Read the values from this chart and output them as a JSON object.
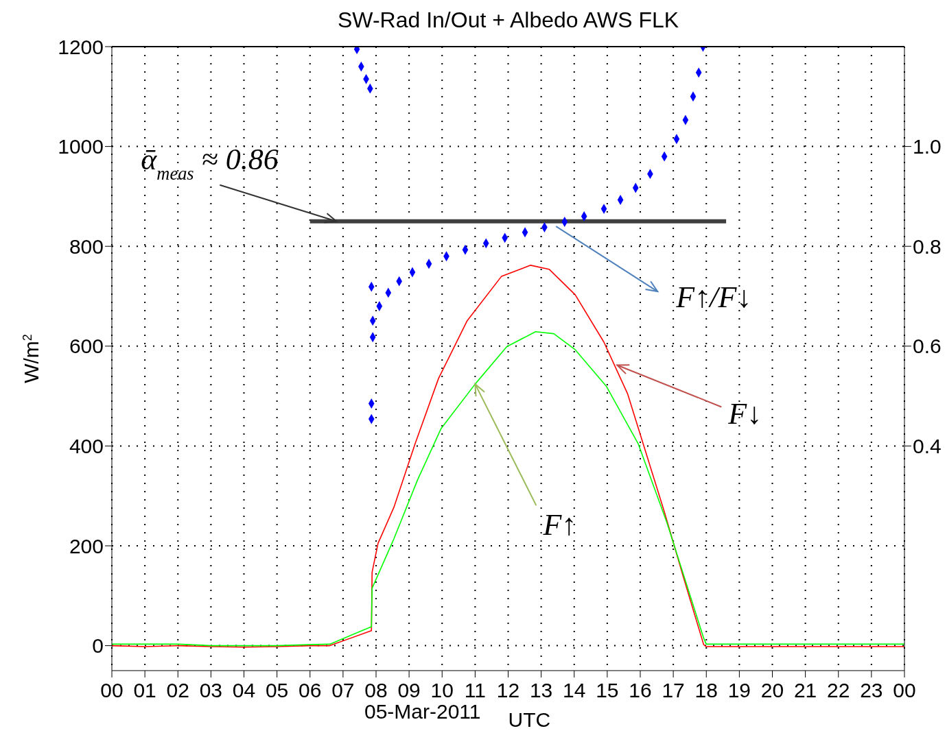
{
  "chart_data": {
    "type": "line",
    "title": "SW-Rad In/Out + Albedo AWS FLK",
    "xlabel": "UTC",
    "ylabel": "W/m$^{2}$",
    "xlim": [
      0,
      24
    ],
    "xticks": [
      {
        "value": 0,
        "label": "00"
      },
      {
        "value": 1,
        "label": "01"
      },
      {
        "value": 2,
        "label": "02"
      },
      {
        "value": 3,
        "label": "03"
      },
      {
        "value": 4,
        "label": "04"
      },
      {
        "value": 5,
        "label": "05"
      },
      {
        "value": 6,
        "label": "06"
      },
      {
        "value": 7,
        "label": "07"
      },
      {
        "value": 8,
        "label": "08"
      },
      {
        "value": 9,
        "label": "09"
      },
      {
        "value": 10,
        "label": "10"
      },
      {
        "value": 11,
        "label": "11"
      },
      {
        "value": 12,
        "label": "12"
      },
      {
        "value": 13,
        "label": "13"
      },
      {
        "value": 14,
        "label": "14"
      },
      {
        "value": 15,
        "label": "15"
      },
      {
        "value": 16,
        "label": "16"
      },
      {
        "value": 17,
        "label": "17"
      },
      {
        "value": 18,
        "label": "18"
      },
      {
        "value": 19,
        "label": "19"
      },
      {
        "value": 20,
        "label": "20"
      },
      {
        "value": 21,
        "label": "21"
      },
      {
        "value": 22,
        "label": "22"
      },
      {
        "value": 23,
        "label": "23"
      },
      {
        "value": 24,
        "label": "00"
      }
    ],
    "ylim": [
      -50,
      1200
    ],
    "yticks": [
      0,
      200,
      400,
      600,
      800,
      1000,
      1200
    ],
    "y2lim": [
      -0.05,
      1.2
    ],
    "y2ticks": [
      0.4,
      0.6,
      0.8,
      {
        "value": 1,
        "label": "1.0"
      }
    ],
    "grid": true,
    "series": [
      {
        "color": "#ff0000",
        "x": [
          0,
          1,
          2,
          3,
          4,
          5,
          6,
          6.6,
          7.86,
          7.88,
          8.06,
          8.54,
          9.18,
          9.89,
          10.76,
          11.8,
          12.68,
          13.24,
          14.03,
          14.9,
          15.62,
          16.09,
          16.73,
          17.29,
          17.92,
          18,
          19,
          20,
          21,
          22,
          23,
          24
        ],
        "values": [
          0,
          -2,
          0,
          -2,
          -3,
          -2,
          0,
          0,
          30,
          147,
          205,
          277,
          404,
          535,
          651,
          740,
          762,
          754,
          703,
          608,
          504,
          404,
          268,
          141,
          2,
          -2,
          -2,
          -2,
          -2,
          -2,
          -2,
          -2
        ]
      },
      {
        "color": "#00ff00",
        "x": [
          0,
          1,
          2,
          3,
          4,
          5,
          6,
          6.6,
          7.86,
          7.88,
          8.54,
          9.25,
          9.97,
          11.0,
          11.96,
          12.83,
          13.38,
          14.03,
          14.98,
          15.94,
          16.81,
          17.92,
          18,
          19,
          20,
          21,
          22,
          23,
          24
        ],
        "values": [
          3,
          3,
          3,
          0,
          0,
          0,
          2,
          3,
          38,
          115,
          214,
          331,
          435,
          524,
          599,
          629,
          625,
          593,
          519,
          404,
          246,
          15,
          3,
          3,
          3,
          3,
          3,
          3,
          3
        ]
      },
      {
        "type": "scatter",
        "axis": "y2",
        "marker": "diamond",
        "color": "#0000ff",
        "x": [
          7.42,
          7.55,
          7.7,
          7.82,
          7.86,
          7.9,
          7.86,
          7.86,
          7.9,
          8.1,
          8.37,
          8.7,
          9.1,
          9.6,
          10.13,
          10.7,
          11.33,
          11.9,
          12.51,
          13.1,
          13.71,
          14.3,
          14.9,
          15.4,
          15.86,
          16.3,
          16.73,
          17.1,
          17.37,
          17.6,
          17.77,
          17.9
        ],
        "values": [
          1.195,
          1.16,
          1.135,
          1.116,
          0.719,
          0.618,
          0.485,
          0.454,
          0.651,
          0.68,
          0.707,
          0.73,
          0.748,
          0.765,
          0.78,
          0.793,
          0.806,
          0.817,
          0.828,
          0.838,
          0.849,
          0.86,
          0.875,
          0.893,
          0.917,
          0.945,
          0.98,
          1.015,
          1.053,
          1.1,
          1.148,
          1.2
        ]
      },
      {
        "type": "line",
        "axis": "y2",
        "color": "#404040",
        "x": [
          6,
          18.6
        ],
        "values": [
          0.85,
          0.85
        ]
      }
    ],
    "annotations": [
      {
        "text": "ᾱ$_{meas}$ ≈ 0.86",
        "x": 6.8,
        "y": 850
      },
      {
        "text": "F↑/F↓",
        "x": 13.45,
        "y": 840
      },
      {
        "text": "F↓",
        "x": 15.3,
        "y": 562
      },
      {
        "text": "F↑",
        "x": 11.0,
        "y": 524
      },
      "05-Mar-2011"
    ]
  }
}
